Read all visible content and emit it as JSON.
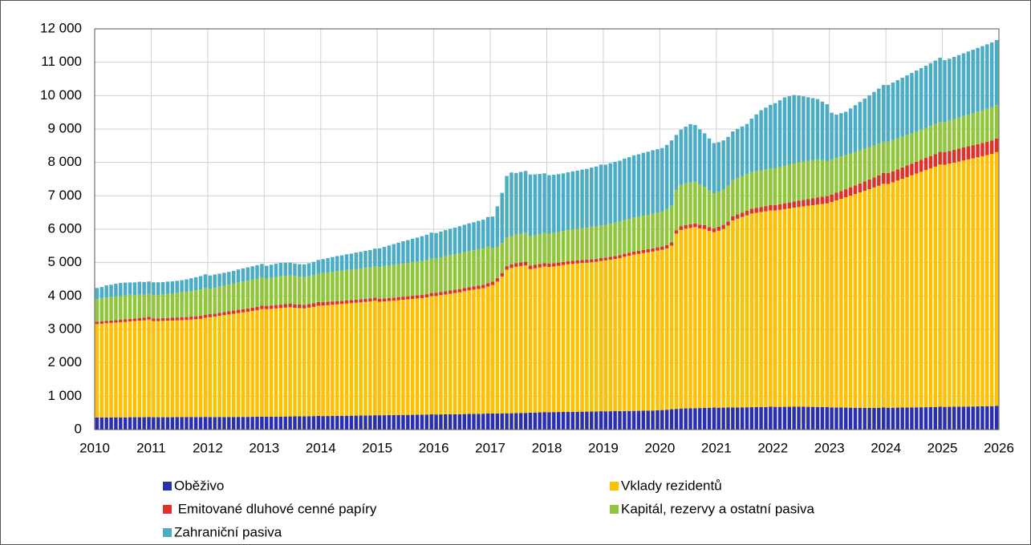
{
  "chart_data": {
    "type": "stacked-bar",
    "xlim": [
      2010,
      2026
    ],
    "xticks": [
      2010,
      2011,
      2012,
      2013,
      2014,
      2015,
      2016,
      2017,
      2018,
      2019,
      2020,
      2021,
      2022,
      2023,
      2024,
      2025,
      2026
    ],
    "ylim": [
      0,
      12000
    ],
    "yticks": [
      0,
      {
        "value": 1000,
        "label": "1 000"
      },
      {
        "value": 2000,
        "label": "2 000"
      },
      {
        "value": 3000,
        "label": "3 000"
      },
      {
        "value": 4000,
        "label": "4 000"
      },
      {
        "value": 5000,
        "label": "5 000"
      },
      {
        "value": 6000,
        "label": "6 000"
      },
      {
        "value": 7000,
        "label": "7 000"
      },
      {
        "value": 8000,
        "label": "8 000"
      },
      {
        "value": 9000,
        "label": "9 000"
      },
      {
        "value": 10000,
        "label": "10 000"
      },
      {
        "value": 11000,
        "label": "11 000"
      },
      {
        "value": 12000,
        "label": "12 000"
      }
    ],
    "grid": true,
    "series": [
      {
        "name": "Oběživo",
        "color": "#2a2fb0",
        "values": [
          360,
          360,
          365,
          365,
          365,
          365,
          365,
          370,
          370,
          370,
          370,
          375,
          370,
          370,
          370,
          370,
          370,
          372,
          372,
          372,
          374,
          374,
          376,
          380,
          375,
          375,
          376,
          376,
          378,
          378,
          380,
          380,
          380,
          382,
          384,
          390,
          385,
          386,
          388,
          390,
          392,
          394,
          396,
          398,
          400,
          402,
          404,
          410,
          405,
          406,
          408,
          410,
          412,
          414,
          416,
          418,
          420,
          422,
          424,
          430,
          428,
          430,
          432,
          434,
          436,
          438,
          440,
          442,
          445,
          447,
          450,
          455,
          452,
          454,
          456,
          458,
          460,
          462,
          465,
          468,
          470,
          472,
          475,
          485,
          480,
          482,
          485,
          488,
          490,
          495,
          498,
          500,
          505,
          510,
          515,
          525,
          522,
          524,
          526,
          528,
          530,
          532,
          534,
          536,
          538,
          540,
          542,
          550,
          548,
          550,
          552,
          554,
          556,
          558,
          560,
          562,
          565,
          568,
          570,
          580,
          585,
          595,
          610,
          620,
          630,
          635,
          640,
          642,
          645,
          648,
          650,
          660,
          655,
          658,
          660,
          662,
          664,
          666,
          668,
          670,
          672,
          674,
          676,
          685,
          680,
          680,
          682,
          682,
          684,
          684,
          684,
          682,
          680,
          678,
          676,
          672,
          665,
          662,
          660,
          658,
          656,
          654,
          652,
          650,
          650,
          650,
          652,
          660,
          655,
          656,
          658,
          660,
          662,
          664,
          666,
          668,
          670,
          672,
          674,
          685,
          680,
          682,
          684,
          686,
          688,
          690,
          692,
          694,
          696,
          698,
          700,
          710
        ]
      },
      {
        "name": "Vklady rezidentů",
        "color": "#ffc000",
        "values": [
          2800,
          2810,
          2820,
          2830,
          2840,
          2850,
          2860,
          2870,
          2880,
          2890,
          2900,
          2920,
          2880,
          2880,
          2885,
          2890,
          2895,
          2900,
          2905,
          2910,
          2920,
          2930,
          2940,
          2970,
          2990,
          3010,
          3030,
          3050,
          3070,
          3090,
          3110,
          3130,
          3150,
          3170,
          3190,
          3220,
          3220,
          3230,
          3240,
          3250,
          3260,
          3270,
          3250,
          3240,
          3230,
          3250,
          3270,
          3300,
          3310,
          3320,
          3330,
          3340,
          3350,
          3360,
          3370,
          3380,
          3390,
          3400,
          3410,
          3430,
          3400,
          3410,
          3420,
          3430,
          3440,
          3450,
          3460,
          3470,
          3480,
          3490,
          3510,
          3540,
          3550,
          3570,
          3590,
          3610,
          3630,
          3650,
          3680,
          3700,
          3720,
          3740,
          3760,
          3800,
          3850,
          3950,
          4100,
          4300,
          4350,
          4380,
          4400,
          4420,
          4300,
          4320,
          4340,
          4360,
          4350,
          4360,
          4380,
          4400,
          4420,
          4430,
          4440,
          4450,
          4460,
          4470,
          4480,
          4500,
          4520,
          4540,
          4560,
          4580,
          4620,
          4650,
          4680,
          4700,
          4720,
          4740,
          4760,
          4780,
          4800,
          4830,
          4900,
          5250,
          5350,
          5380,
          5400,
          5420,
          5380,
          5360,
          5300,
          5250,
          5300,
          5350,
          5450,
          5600,
          5650,
          5700,
          5750,
          5800,
          5820,
          5840,
          5860,
          5880,
          5880,
          5900,
          5920,
          5940,
          5960,
          5980,
          6000,
          6020,
          6040,
          6060,
          6080,
          6100,
          6150,
          6200,
          6250,
          6300,
          6350,
          6400,
          6450,
          6500,
          6550,
          6600,
          6650,
          6700,
          6700,
          6750,
          6800,
          6850,
          6900,
          6950,
          7000,
          7050,
          7100,
          7150,
          7200,
          7250,
          7250,
          7280,
          7310,
          7340,
          7370,
          7400,
          7430,
          7460,
          7490,
          7520,
          7550,
          7600
        ]
      },
      {
        "name": " Emitované dluhové cenné papíry",
        "color": "#e0302a",
        "values": [
          70,
          70,
          72,
          72,
          74,
          74,
          76,
          76,
          78,
          78,
          80,
          80,
          80,
          80,
          82,
          82,
          84,
          84,
          86,
          86,
          88,
          88,
          90,
          90,
          90,
          90,
          92,
          92,
          94,
          94,
          96,
          96,
          98,
          98,
          100,
          100,
          100,
          100,
          102,
          102,
          104,
          104,
          106,
          106,
          108,
          108,
          110,
          110,
          100,
          100,
          98,
          98,
          96,
          96,
          94,
          94,
          92,
          92,
          90,
          90,
          90,
          90,
          90,
          90,
          92,
          92,
          92,
          92,
          94,
          94,
          94,
          94,
          95,
          95,
          96,
          96,
          97,
          97,
          98,
          98,
          99,
          99,
          100,
          100,
          100,
          102,
          104,
          106,
          108,
          110,
          108,
          106,
          104,
          102,
          100,
          98,
          96,
          95,
          94,
          93,
          92,
          91,
          90,
          89,
          88,
          87,
          86,
          85,
          85,
          86,
          87,
          88,
          89,
          90,
          91,
          92,
          93,
          94,
          95,
          96,
          96,
          98,
          100,
          102,
          104,
          106,
          108,
          110,
          112,
          114,
          116,
          118,
          120,
          122,
          124,
          126,
          128,
          130,
          135,
          140,
          145,
          150,
          155,
          160,
          165,
          170,
          175,
          180,
          185,
          190,
          195,
          200,
          205,
          210,
          215,
          220,
          225,
          230,
          235,
          240,
          250,
          260,
          270,
          280,
          290,
          300,
          310,
          320,
          325,
          330,
          335,
          340,
          345,
          350,
          355,
          360,
          365,
          370,
          375,
          380,
          382,
          384,
          386,
          388,
          390,
          392,
          394,
          396,
          398,
          400,
          402,
          405
        ]
      },
      {
        "name": "Kapitál, rezervy a ostatní pasiva",
        "color": "#8fc63a",
        "values": [
          680,
          690,
          700,
          700,
          710,
          710,
          720,
          720,
          700,
          700,
          690,
          690,
          700,
          700,
          710,
          720,
          730,
          740,
          750,
          760,
          770,
          780,
          790,
          800,
          760,
          770,
          780,
          790,
          800,
          810,
          820,
          830,
          830,
          840,
          840,
          850,
          820,
          830,
          840,
          850,
          850,
          850,
          850,
          840,
          830,
          830,
          840,
          850,
          870,
          880,
          890,
          900,
          900,
          910,
          910,
          920,
          920,
          930,
          930,
          940,
          950,
          960,
          970,
          980,
          990,
          1000,
          1000,
          1010,
          1010,
          1020,
          1020,
          1030,
          1030,
          1040,
          1050,
          1060,
          1060,
          1070,
          1070,
          1080,
          1080,
          1090,
          1090,
          1100,
          1000,
          950,
          900,
          850,
          850,
          850,
          860,
          870,
          880,
          890,
          900,
          910,
          900,
          910,
          920,
          930,
          940,
          950,
          950,
          960,
          960,
          970,
          970,
          980,
          980,
          990,
          1000,
          1000,
          1010,
          1010,
          1020,
          1020,
          1030,
          1030,
          1040,
          1040,
          1050,
          1080,
          1100,
          1200,
          1250,
          1250,
          1250,
          1250,
          1200,
          1150,
          1100,
          1050,
          1050,
          1060,
          1070,
          1080,
          1090,
          1100,
          1100,
          1100,
          1100,
          1100,
          1100,
          1100,
          1100,
          1110,
          1120,
          1130,
          1140,
          1150,
          1150,
          1150,
          1150,
          1150,
          1100,
          1050,
          1050,
          1040,
          1030,
          1020,
          1010,
          1000,
          990,
          980,
          970,
          960,
          950,
          940,
          940,
          935,
          930,
          925,
          920,
          915,
          910,
          905,
          900,
          900,
          900,
          900,
          900,
          910,
          920,
          930,
          940,
          950,
          960,
          970,
          980,
          990,
          1000,
          1000
        ]
      },
      {
        "name": "Zahraniční pasiva",
        "color": "#4bacc6",
        "values": [
          330,
          340,
          360,
          370,
          380,
          390,
          380,
          370,
          380,
          390,
          380,
          370,
          380,
          380,
          370,
          370,
          360,
          360,
          360,
          370,
          380,
          390,
          400,
          410,
          400,
          400,
          390,
          390,
          380,
          380,
          390,
          390,
          400,
          400,
          410,
          400,
          380,
          390,
          400,
          400,
          390,
          380,
          370,
          370,
          380,
          390,
          400,
          410,
          420,
          430,
          440,
          450,
          460,
          470,
          480,
          490,
          500,
          510,
          520,
          530,
          560,
          580,
          600,
          620,
          640,
          660,
          680,
          700,
          720,
          740,
          760,
          780,
          760,
          770,
          780,
          790,
          800,
          810,
          820,
          830,
          840,
          850,
          860,
          880,
          950,
          1200,
          1500,
          1850,
          1900,
          1850,
          1850,
          1850,
          1850,
          1820,
          1800,
          1780,
          1750,
          1740,
          1730,
          1720,
          1720,
          1730,
          1740,
          1750,
          1760,
          1780,
          1800,
          1820,
          1800,
          1810,
          1820,
          1830,
          1840,
          1850,
          1860,
          1870,
          1880,
          1890,
          1900,
          1900,
          1900,
          1920,
          1950,
          1650,
          1650,
          1700,
          1750,
          1700,
          1650,
          1600,
          1550,
          1500,
          1480,
          1470,
          1460,
          1460,
          1470,
          1480,
          1500,
          1600,
          1700,
          1800,
          1850,
          1900,
          1950,
          2000,
          2050,
          2050,
          2050,
          2000,
          1950,
          1900,
          1850,
          1800,
          1750,
          1700,
          1400,
          1300,
          1300,
          1300,
          1350,
          1400,
          1450,
          1500,
          1550,
          1600,
          1650,
          1700,
          1700,
          1720,
          1740,
          1760,
          1780,
          1800,
          1820,
          1840,
          1860,
          1880,
          1900,
          1920,
          1850,
          1850,
          1860,
          1870,
          1880,
          1890,
          1900,
          1910,
          1920,
          1930,
          1940,
          1950
        ]
      }
    ]
  }
}
